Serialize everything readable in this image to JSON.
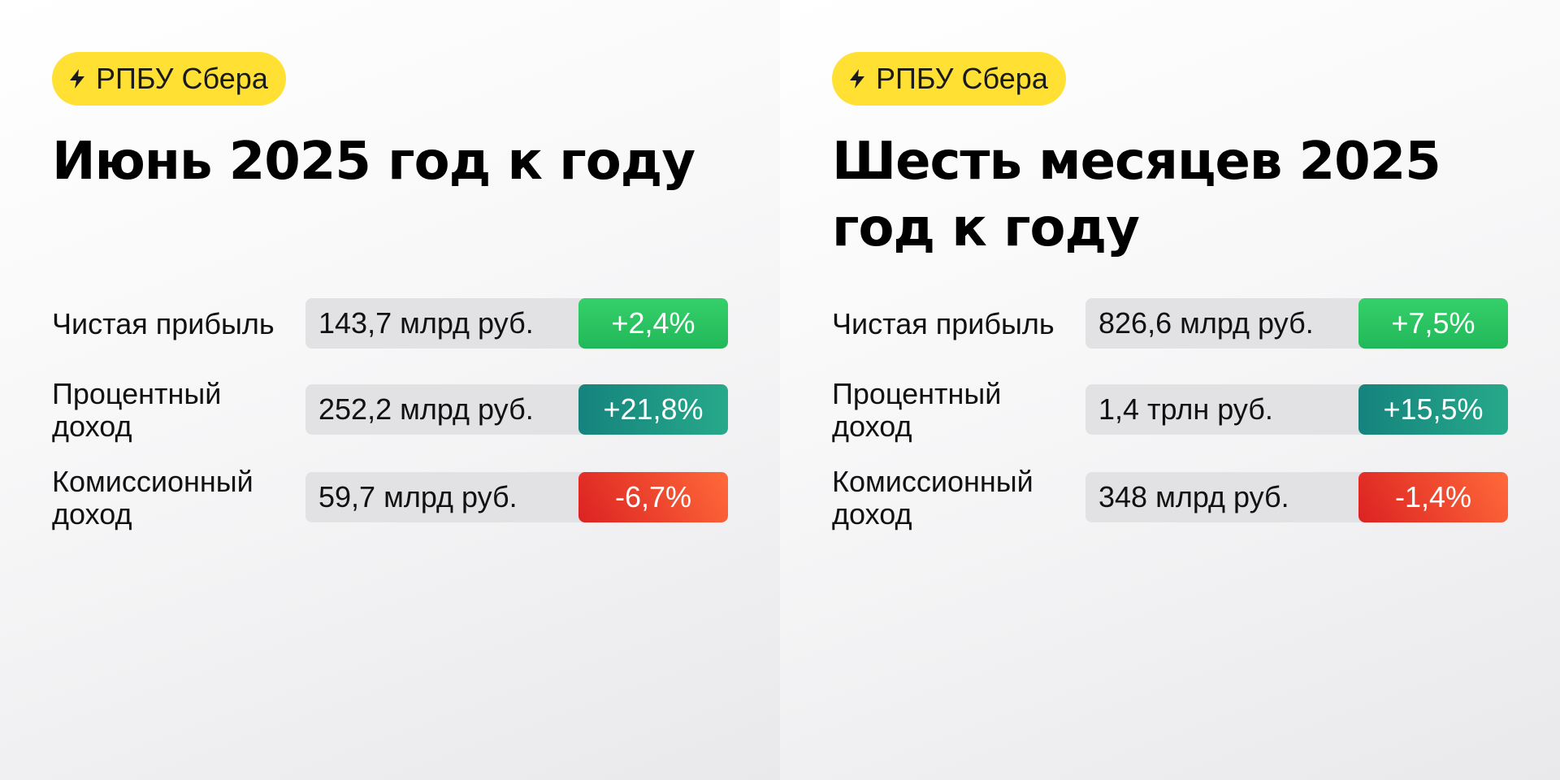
{
  "colors": {
    "tag_bg": "#ffe033",
    "value_bg": "#e2e2e4",
    "green": "#2fc863",
    "teal": "#1a8f85",
    "red": "#e3362a"
  },
  "panels": [
    {
      "tag": {
        "icon": "lightning-icon",
        "label": "РПБУ Сбера"
      },
      "title": "Июнь 2025 год к году",
      "rows": [
        {
          "label": "Чистая прибыль",
          "value": "143,7 млрд руб.",
          "change": "+2,4%",
          "trend": "green"
        },
        {
          "label": "Процентный доход",
          "value": "252,2 млрд руб.",
          "change": "+21,8%",
          "trend": "teal"
        },
        {
          "label": "Комиссионный доход",
          "value": "59,7 млрд руб.",
          "change": "-6,7%",
          "trend": "red"
        }
      ]
    },
    {
      "tag": {
        "icon": "lightning-icon",
        "label": "РПБУ Сбера"
      },
      "title": "Шесть месяцев 2025 год к году",
      "rows": [
        {
          "label": "Чистая прибыль",
          "value": "826,6 млрд руб.",
          "change": "+7,5%",
          "trend": "green"
        },
        {
          "label": "Процентный доход",
          "value": "1,4 трлн руб.",
          "change": "+15,5%",
          "trend": "teal"
        },
        {
          "label": "Комиссионный доход",
          "value": "348 млрд руб.",
          "change": "-1,4%",
          "trend": "red"
        }
      ]
    }
  ]
}
